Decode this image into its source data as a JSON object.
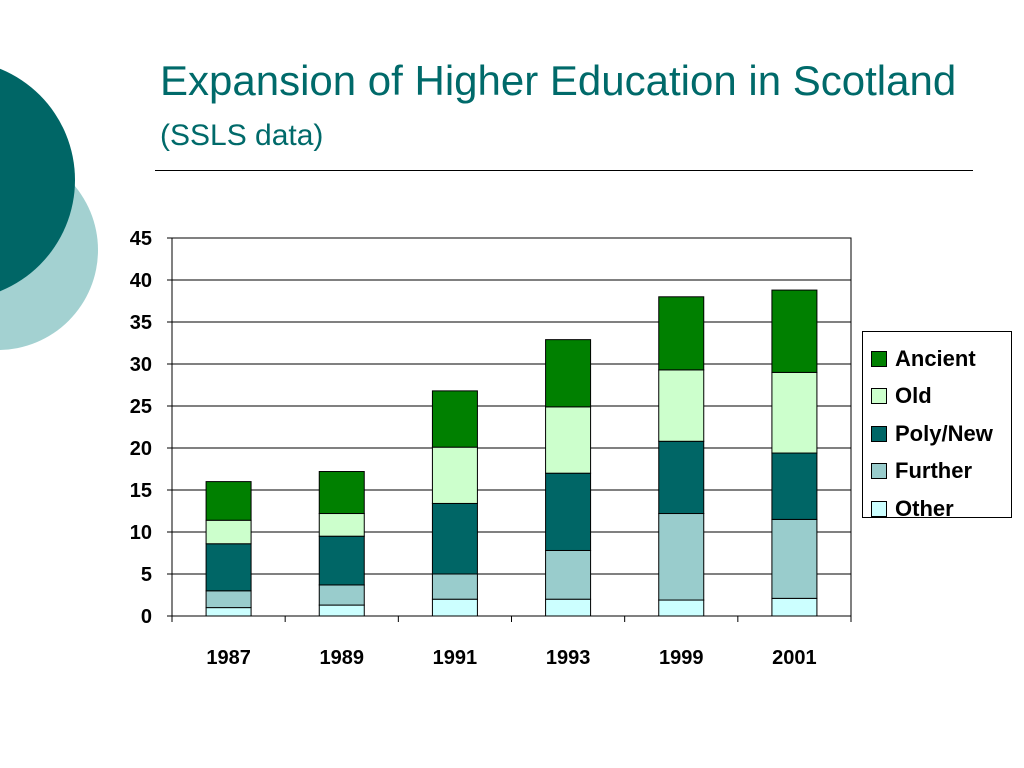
{
  "slide": {
    "title_main": "Expansion of Higher Education in Scotland",
    "title_sub": "(SSLS data)"
  },
  "colors": {
    "title": "#006a6a",
    "deco_dark": "#006666",
    "deco_light": "#a3d1d1"
  },
  "chart_data": {
    "type": "bar",
    "stacked": true,
    "title": "",
    "xlabel": "",
    "ylabel": "",
    "categories": [
      "1987",
      "1989",
      "1991",
      "1993",
      "1999",
      "2001"
    ],
    "ylim": [
      0,
      45
    ],
    "yticks": [
      0,
      5,
      10,
      15,
      20,
      25,
      30,
      35,
      40,
      45
    ],
    "grid": true,
    "legend_position": "right",
    "series": [
      {
        "name": "Other",
        "color": "#ccffff",
        "values": [
          1.0,
          1.3,
          2.0,
          2.0,
          1.9,
          2.1
        ]
      },
      {
        "name": "Further",
        "color": "#99cccc",
        "values": [
          2.0,
          2.4,
          3.0,
          5.8,
          10.3,
          9.4
        ]
      },
      {
        "name": "Poly/New",
        "color": "#006666",
        "values": [
          5.6,
          5.8,
          8.4,
          9.2,
          8.6,
          7.9
        ]
      },
      {
        "name": "Old",
        "color": "#ccffcc",
        "values": [
          2.8,
          2.7,
          6.7,
          7.9,
          8.5,
          9.6
        ]
      },
      {
        "name": "Ancient",
        "color": "#008000",
        "values": [
          4.6,
          5.0,
          6.7,
          8.0,
          8.7,
          9.8
        ]
      }
    ]
  }
}
